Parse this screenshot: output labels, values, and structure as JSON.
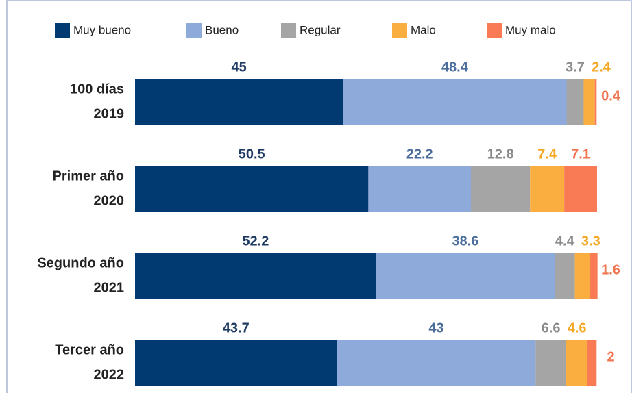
{
  "chart_data": {
    "type": "stacked-barh",
    "categories": [
      [
        "100 días",
        "2019"
      ],
      [
        "Primer año",
        "2020"
      ],
      [
        "Segundo año",
        "2021"
      ],
      [
        "Tercer año",
        "2022"
      ]
    ],
    "series": [
      {
        "name": "Muy bueno",
        "color": "#003a70",
        "label_color": "#1f3a63",
        "values": [
          45,
          50.5,
          52.2,
          43.7
        ]
      },
      {
        "name": "Bueno",
        "color": "#8eaadb",
        "label_color": "#4a6d9c",
        "values": [
          48.4,
          22.2,
          38.6,
          43
        ]
      },
      {
        "name": "Regular",
        "color": "#a5a5a5",
        "label_color": "#8a8a8a",
        "values": [
          3.7,
          12.8,
          4.4,
          6.6
        ]
      },
      {
        "name": "Malo",
        "color": "#f9ae3f",
        "label_color": "#f5a623",
        "values": [
          2.4,
          7.4,
          3.3,
          4.6
        ]
      },
      {
        "name": "Muy malo",
        "color": "#f97b55",
        "label_color": "#f07450",
        "values": [
          0.4,
          7.1,
          1.6,
          2
        ]
      }
    ],
    "xlim": [
      0,
      100
    ]
  }
}
